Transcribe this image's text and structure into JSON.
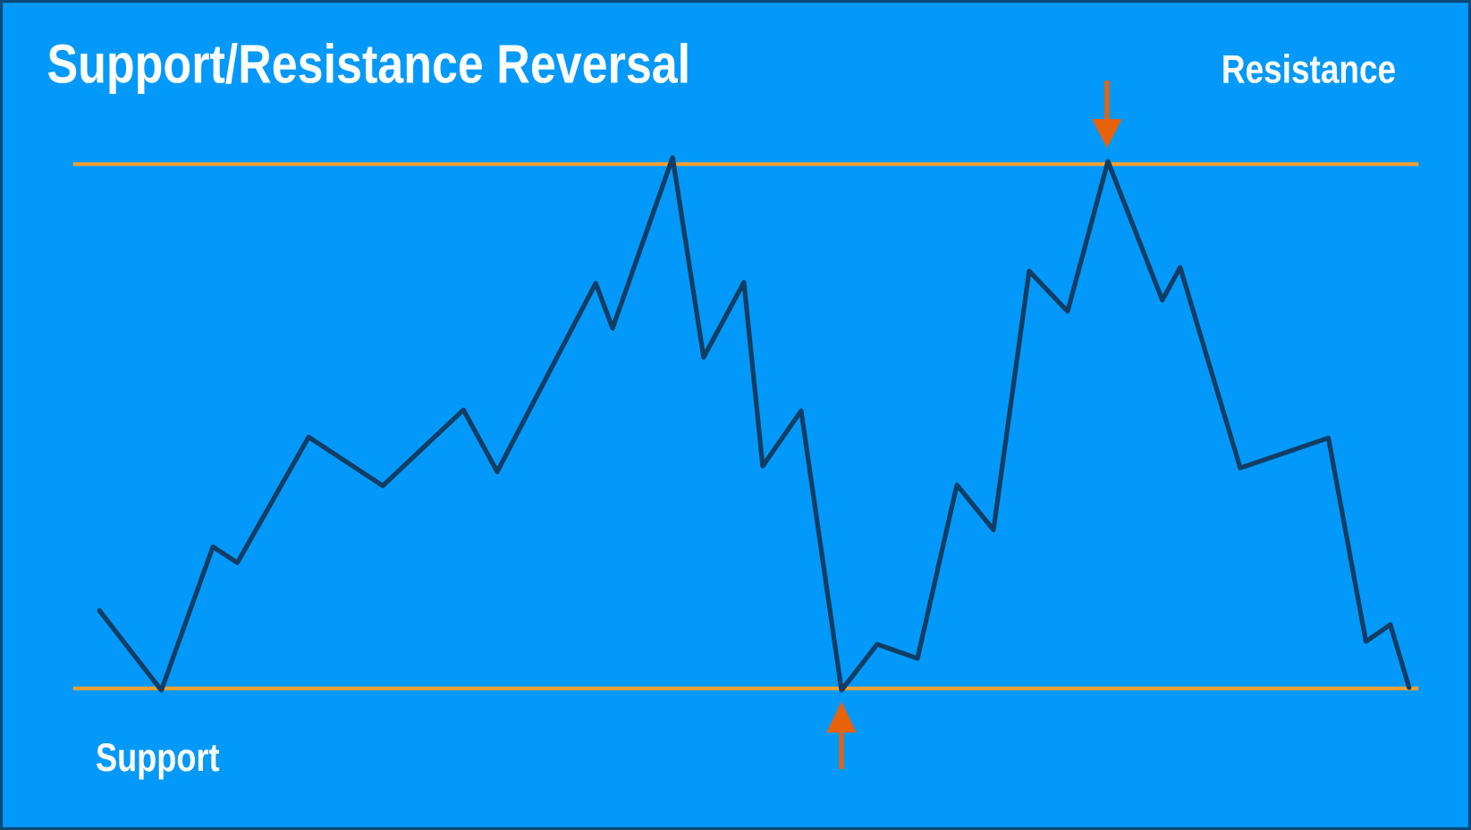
{
  "header": {
    "title": "Support/Resistance Reversal"
  },
  "labels": {
    "resistance": "Resistance",
    "support": "Support"
  }
}
